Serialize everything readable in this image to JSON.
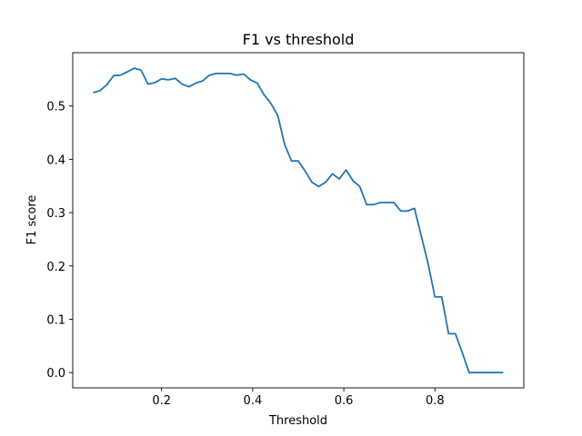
{
  "chart_data": {
    "type": "line",
    "title": "F1 vs threshold",
    "xlabel": "Threshold",
    "ylabel": "F1 score",
    "xlim": [
      0.005,
      0.995
    ],
    "ylim": [
      -0.0286,
      0.6
    ],
    "xticks": [
      0.2,
      0.4,
      0.6,
      0.8
    ],
    "xtick_labels": [
      "0.2",
      "0.4",
      "0.6",
      "0.8"
    ],
    "yticks": [
      0.0,
      0.1,
      0.2,
      0.3,
      0.4,
      0.5
    ],
    "ytick_labels": [
      "0.0",
      "0.1",
      "0.2",
      "0.3",
      "0.4",
      "0.5"
    ],
    "grid": false,
    "color": "#1f77b4",
    "x_start": 0.05,
    "x_step": 0.015,
    "series": [
      {
        "values": [
          0.525,
          0.529,
          0.54,
          0.557,
          0.558,
          0.564,
          0.571,
          0.567,
          0.541,
          0.544,
          0.551,
          0.549,
          0.552,
          0.541,
          0.536,
          0.543,
          0.547,
          0.558,
          0.561,
          0.561,
          0.561,
          0.558,
          0.56,
          0.549,
          0.543,
          0.521,
          0.505,
          0.482,
          0.428,
          0.397,
          0.397,
          0.378,
          0.357,
          0.349,
          0.357,
          0.373,
          0.363,
          0.38,
          0.36,
          0.349,
          0.315,
          0.315,
          0.319,
          0.319,
          0.319,
          0.303,
          0.303,
          0.308,
          0.256,
          0.204,
          0.142,
          0.142,
          0.073,
          0.073,
          0.037,
          0,
          0,
          0,
          0,
          0,
          0
        ]
      }
    ]
  }
}
